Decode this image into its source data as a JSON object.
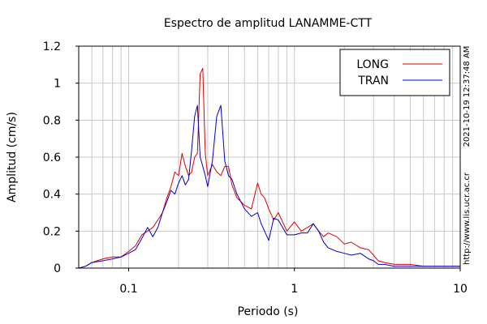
{
  "chart_data": {
    "type": "line",
    "title": "Espectro de amplitud LANAMME-CTT",
    "xlabel": "Periodo (s)",
    "ylabel": "Amplitud (cm/s)",
    "x_scale": "log",
    "xlim": [
      0.05,
      10
    ],
    "ylim": [
      0,
      1.2
    ],
    "x_ticks": [
      {
        "value": 0.1,
        "label": "0.1"
      },
      {
        "value": 1,
        "label": "1"
      },
      {
        "value": 10,
        "label": "10"
      }
    ],
    "y_ticks": [
      {
        "value": 0,
        "label": "0"
      },
      {
        "value": 0.2,
        "label": "0.2"
      },
      {
        "value": 0.4,
        "label": "0.4"
      },
      {
        "value": 0.6,
        "label": "0.6"
      },
      {
        "value": 0.8,
        "label": "0.8"
      },
      {
        "value": 1,
        "label": "1"
      },
      {
        "value": 1.2,
        "label": "1.2"
      }
    ],
    "grid": true,
    "legend_position": "top-right",
    "series": [
      {
        "name": "LONG",
        "color": "#dd0000",
        "x": [
          0.05,
          0.055,
          0.06,
          0.07,
          0.08,
          0.09,
          0.1,
          0.11,
          0.12,
          0.13,
          0.14,
          0.15,
          0.16,
          0.17,
          0.18,
          0.19,
          0.2,
          0.21,
          0.22,
          0.23,
          0.24,
          0.25,
          0.26,
          0.27,
          0.28,
          0.29,
          0.3,
          0.32,
          0.34,
          0.36,
          0.38,
          0.4,
          0.42,
          0.45,
          0.5,
          0.55,
          0.6,
          0.63,
          0.66,
          0.7,
          0.75,
          0.8,
          0.9,
          1.0,
          1.1,
          1.2,
          1.3,
          1.4,
          1.5,
          1.6,
          1.8,
          2.0,
          2.2,
          2.5,
          2.8,
          3.0,
          3.2,
          3.5,
          4.0,
          4.5,
          5.0,
          6.0,
          7.0,
          8.0,
          10.0
        ],
        "y": [
          0.0,
          0.01,
          0.03,
          0.05,
          0.06,
          0.06,
          0.09,
          0.12,
          0.18,
          0.2,
          0.22,
          0.26,
          0.3,
          0.38,
          0.44,
          0.52,
          0.5,
          0.62,
          0.55,
          0.5,
          0.52,
          0.6,
          0.62,
          1.05,
          1.08,
          0.62,
          0.5,
          0.56,
          0.52,
          0.5,
          0.55,
          0.55,
          0.45,
          0.38,
          0.34,
          0.32,
          0.46,
          0.4,
          0.38,
          0.32,
          0.26,
          0.3,
          0.2,
          0.25,
          0.2,
          0.22,
          0.24,
          0.2,
          0.17,
          0.19,
          0.17,
          0.13,
          0.14,
          0.11,
          0.1,
          0.07,
          0.04,
          0.03,
          0.02,
          0.02,
          0.02,
          0.01,
          0.01,
          0.01,
          0.01
        ]
      },
      {
        "name": "TRAN",
        "color": "#0000cc",
        "x": [
          0.05,
          0.055,
          0.06,
          0.07,
          0.08,
          0.09,
          0.1,
          0.11,
          0.12,
          0.13,
          0.14,
          0.15,
          0.16,
          0.17,
          0.18,
          0.19,
          0.2,
          0.21,
          0.22,
          0.23,
          0.24,
          0.25,
          0.26,
          0.27,
          0.28,
          0.29,
          0.3,
          0.32,
          0.34,
          0.36,
          0.38,
          0.4,
          0.42,
          0.45,
          0.5,
          0.55,
          0.6,
          0.63,
          0.66,
          0.7,
          0.75,
          0.8,
          0.9,
          1.0,
          1.1,
          1.2,
          1.3,
          1.4,
          1.5,
          1.6,
          1.8,
          2.0,
          2.2,
          2.5,
          2.8,
          3.0,
          3.2,
          3.5,
          4.0,
          4.5,
          5.0,
          6.0,
          7.0,
          8.0,
          10.0
        ],
        "y": [
          0.0,
          0.01,
          0.03,
          0.04,
          0.05,
          0.06,
          0.08,
          0.1,
          0.16,
          0.22,
          0.17,
          0.22,
          0.3,
          0.36,
          0.42,
          0.4,
          0.46,
          0.5,
          0.45,
          0.48,
          0.64,
          0.82,
          0.88,
          0.6,
          0.55,
          0.5,
          0.44,
          0.58,
          0.82,
          0.88,
          0.58,
          0.5,
          0.48,
          0.4,
          0.32,
          0.28,
          0.3,
          0.24,
          0.2,
          0.15,
          0.27,
          0.26,
          0.18,
          0.18,
          0.19,
          0.19,
          0.24,
          0.2,
          0.14,
          0.11,
          0.09,
          0.08,
          0.07,
          0.08,
          0.05,
          0.04,
          0.02,
          0.02,
          0.01,
          0.01,
          0.01,
          0.01,
          0.01,
          0.01,
          0.01
        ]
      }
    ]
  },
  "side_text": {
    "timestamp": "2021-10-19 12:37:48 AM",
    "url": "http://www.lis.ucr.ac.cr"
  }
}
